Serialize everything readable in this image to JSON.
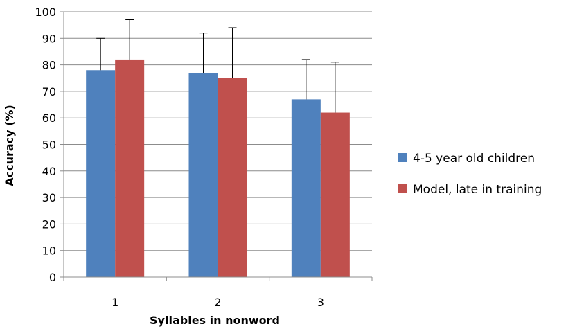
{
  "chart_data": {
    "type": "bar",
    "title": "",
    "xlabel": "Syllables in nonword",
    "ylabel": "Accuracy (%)",
    "categories": [
      "1",
      "2",
      "3"
    ],
    "ylim": [
      0,
      100
    ],
    "ytick_step": 10,
    "grid": true,
    "legend_position": "right",
    "series": [
      {
        "name": "4-5 year old children",
        "color": "#4F81BD",
        "values": [
          78,
          77,
          67
        ],
        "error": [
          12,
          15,
          15
        ]
      },
      {
        "name": "Model, late in training",
        "color": "#C0504D",
        "values": [
          82,
          75,
          62
        ],
        "error": [
          15,
          19,
          19
        ]
      }
    ]
  }
}
